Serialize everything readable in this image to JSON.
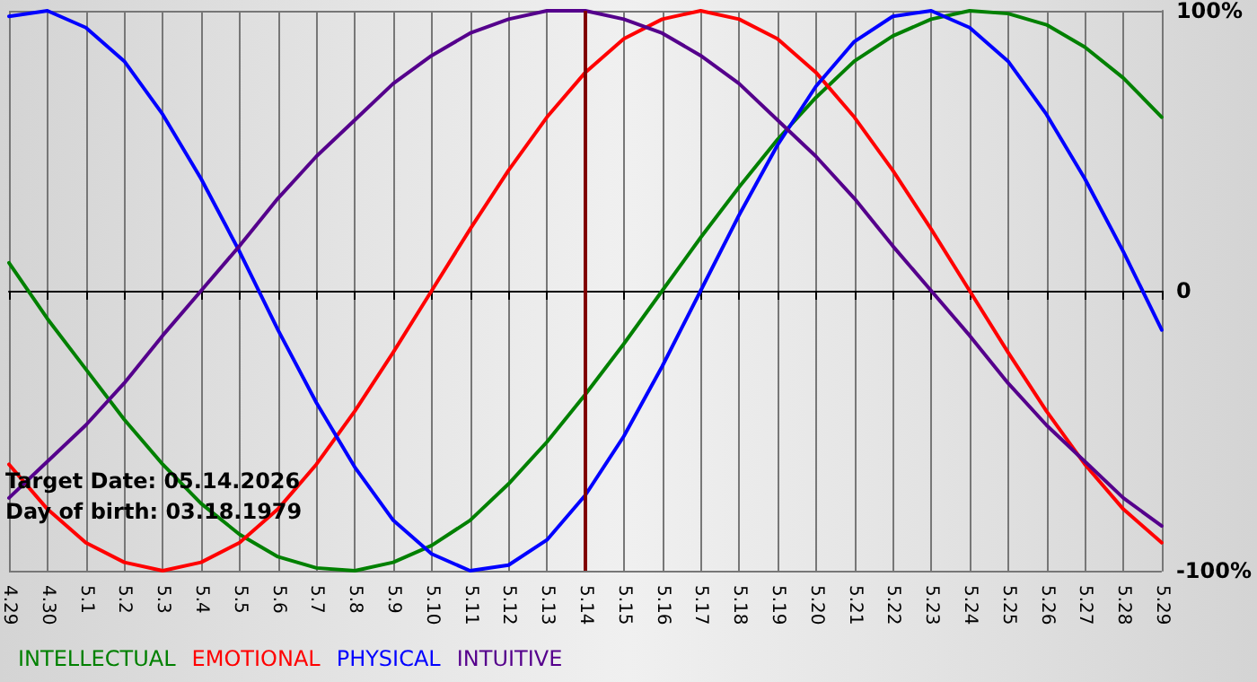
{
  "chart_data": {
    "type": "line",
    "categories": [
      "4.29",
      "4.30",
      "5.1",
      "5.2",
      "5.3",
      "5.4",
      "5.5",
      "5.6",
      "5.7",
      "5.8",
      "5.9",
      "5.10",
      "5.11",
      "5.12",
      "5.13",
      "5.14",
      "5.15",
      "5.16",
      "5.17",
      "5.18",
      "5.19",
      "5.20",
      "5.21",
      "5.22",
      "5.23",
      "5.24",
      "5.25",
      "5.26",
      "5.27",
      "5.28",
      "5.29"
    ],
    "series": [
      {
        "name": "INTELLECTUAL",
        "color": "#008000",
        "values": [
          10,
          -10,
          -28,
          -46,
          -62,
          -76,
          -87,
          -95,
          -99,
          -100,
          -97,
          -91,
          -82,
          -69,
          -54,
          -37,
          -19,
          0,
          19,
          37,
          54,
          69,
          82,
          91,
          97,
          100,
          99,
          95,
          87,
          76,
          62
        ]
      },
      {
        "name": "EMOTIONAL",
        "color": "#ff0000",
        "values": [
          -62,
          -78,
          -90,
          -97,
          -100,
          -97,
          -90,
          -78,
          -62,
          -43,
          -22,
          0,
          22,
          43,
          62,
          78,
          90,
          97,
          100,
          97,
          90,
          78,
          62,
          43,
          22,
          0,
          -22,
          -43,
          -62,
          -78,
          -90
        ]
      },
      {
        "name": "PHYSICAL",
        "color": "#0000ff",
        "values": [
          98,
          100,
          94,
          82,
          63,
          40,
          14,
          -14,
          -40,
          -63,
          -82,
          -94,
          -100,
          -98,
          -89,
          -73,
          -52,
          -27,
          0,
          27,
          52,
          73,
          89,
          98,
          100,
          94,
          82,
          63,
          40,
          14,
          -14
        ]
      },
      {
        "name": "INTUITIVE",
        "color": "#55008c",
        "values": [
          -74,
          -61,
          -48,
          -33,
          -16,
          0,
          16,
          33,
          48,
          61,
          74,
          84,
          92,
          97,
          100,
          100,
          97,
          92,
          84,
          74,
          61,
          48,
          33,
          16,
          0,
          -16,
          -33,
          -48,
          -61,
          -74,
          -84
        ]
      }
    ],
    "ylim": [
      -100,
      100
    ],
    "yticks": [
      {
        "value": -100,
        "label": "-100%"
      },
      {
        "value": 0,
        "label": "0"
      },
      {
        "value": 100,
        "label": "100%"
      }
    ],
    "ref_lines": [
      {
        "axis": "x",
        "value": "5.14",
        "color": "#800000"
      }
    ],
    "annotations": [
      "Target Date: 05.14.2026",
      "Day of birth: 03.18.1979"
    ],
    "grid": true,
    "legend": "bottom left",
    "marker": "none",
    "line_style": "solid"
  }
}
